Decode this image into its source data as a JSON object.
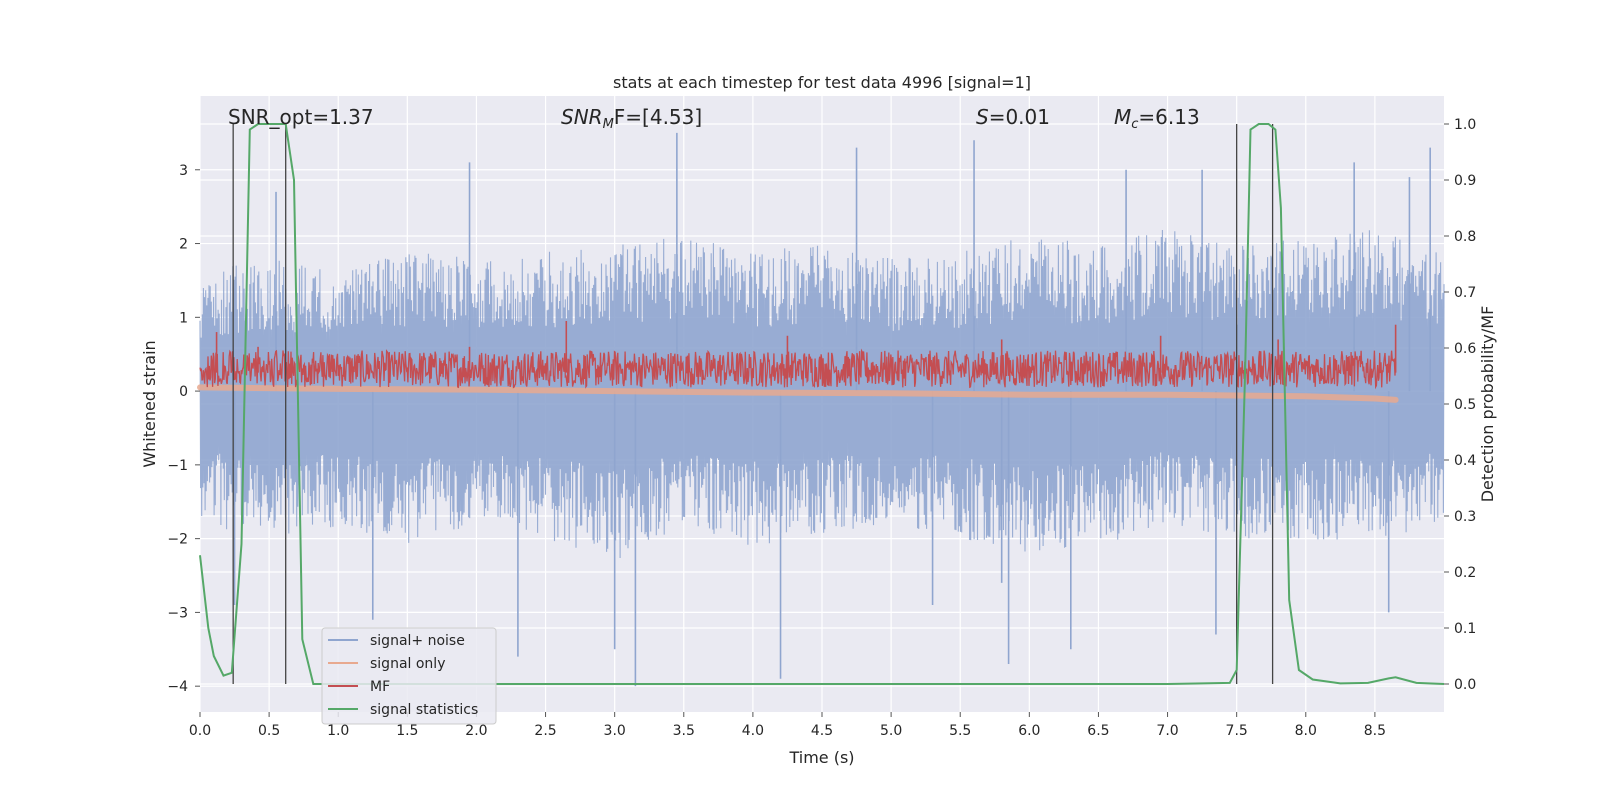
{
  "chart_data": {
    "type": "line",
    "title": "stats at each timestep for test data 4996 [signal=1]",
    "xlabel": "Time (s)",
    "ylabel": "Whitened strain",
    "ylabel_right": "Detection probability/MF",
    "xlim": [
      0.0,
      9.0
    ],
    "ylim": [
      -4.35,
      4.0
    ],
    "ylim_right": [
      -0.05,
      1.05
    ],
    "x_ticks": [
      "0.0",
      "0.5",
      "1.0",
      "1.5",
      "2.0",
      "2.5",
      "3.0",
      "3.5",
      "4.0",
      "4.5",
      "5.0",
      "5.5",
      "6.0",
      "6.5",
      "7.0",
      "7.5",
      "8.0",
      "8.5"
    ],
    "y_ticks": [
      "3",
      "2",
      "1",
      "0",
      "−1",
      "−2",
      "−3",
      "−4"
    ],
    "y_ticks_right": [
      "1.0",
      "0.9",
      "0.8",
      "0.7",
      "0.6",
      "0.5",
      "0.4",
      "0.3",
      "0.2",
      "0.1",
      "0.0"
    ],
    "grid": true,
    "legend_position": "lower-left",
    "annotations": {
      "snr_opt": "SNR_opt=1.37",
      "snr_mf_base": "SNR",
      "snr_mf_sub": "M",
      "snr_mf_rest": "F=[4.53]",
      "s_base": "S",
      "s_rest": "=0.01",
      "mc_base": "M",
      "mc_sub": "c",
      "mc_rest": "=6.13"
    },
    "series": [
      {
        "name": "signal+ noise",
        "color": "#8fa5cf",
        "axis": "left",
        "envelope_low": [
          [
            0.0,
            -1.8
          ],
          [
            0.5,
            -2.0
          ],
          [
            1.0,
            -1.9
          ],
          [
            1.5,
            -2.1
          ],
          [
            2.0,
            -1.8
          ],
          [
            2.5,
            -2.0
          ],
          [
            3.0,
            -2.3
          ],
          [
            3.5,
            -1.9
          ],
          [
            4.0,
            -2.1
          ],
          [
            4.5,
            -2.0
          ],
          [
            5.0,
            -1.8
          ],
          [
            5.5,
            -2.0
          ],
          [
            6.0,
            -2.2
          ],
          [
            6.5,
            -2.1
          ],
          [
            7.0,
            -1.8
          ],
          [
            7.5,
            -2.0
          ],
          [
            8.0,
            -2.0
          ],
          [
            8.5,
            -2.1
          ],
          [
            9.0,
            -1.8
          ]
        ],
        "envelope_high": [
          [
            0.0,
            1.6
          ],
          [
            0.5,
            1.8
          ],
          [
            1.0,
            1.7
          ],
          [
            1.5,
            1.9
          ],
          [
            2.0,
            1.8
          ],
          [
            2.5,
            1.9
          ],
          [
            3.0,
            2.0
          ],
          [
            3.5,
            2.1
          ],
          [
            4.0,
            1.9
          ],
          [
            4.5,
            2.0
          ],
          [
            5.0,
            1.8
          ],
          [
            5.5,
            1.9
          ],
          [
            6.0,
            2.1
          ],
          [
            6.5,
            2.0
          ],
          [
            7.0,
            2.2
          ],
          [
            7.5,
            2.0
          ],
          [
            8.0,
            2.1
          ],
          [
            8.5,
            2.2
          ],
          [
            9.0,
            1.9
          ]
        ],
        "spikes": [
          [
            0.25,
            -2.9
          ],
          [
            0.55,
            2.7
          ],
          [
            1.25,
            -3.1
          ],
          [
            1.95,
            3.1
          ],
          [
            2.3,
            -3.6
          ],
          [
            3.0,
            -3.5
          ],
          [
            3.15,
            -4.0
          ],
          [
            3.45,
            3.5
          ],
          [
            4.2,
            -3.9
          ],
          [
            4.75,
            3.3
          ],
          [
            5.3,
            -2.9
          ],
          [
            5.6,
            3.4
          ],
          [
            5.8,
            -2.6
          ],
          [
            5.85,
            -3.7
          ],
          [
            6.3,
            -3.5
          ],
          [
            6.7,
            3.0
          ],
          [
            7.25,
            3.0
          ],
          [
            7.35,
            -3.3
          ],
          [
            8.35,
            3.1
          ],
          [
            8.6,
            -3.0
          ],
          [
            8.75,
            2.9
          ],
          [
            8.9,
            3.3
          ]
        ]
      },
      {
        "name": "signal only",
        "color": "#e8a98f",
        "axis": "left",
        "points": [
          [
            0.0,
            0.05
          ],
          [
            1.0,
            0.03
          ],
          [
            2.0,
            0.02
          ],
          [
            3.0,
            0.0
          ],
          [
            4.0,
            -0.02
          ],
          [
            5.0,
            -0.03
          ],
          [
            6.0,
            -0.05
          ],
          [
            7.0,
            -0.05
          ],
          [
            7.5,
            -0.06
          ],
          [
            8.0,
            -0.07
          ],
          [
            8.5,
            -0.1
          ],
          [
            8.65,
            -0.12
          ]
        ]
      },
      {
        "name": "MF",
        "color": "#c44e52",
        "axis": "left",
        "band_low": 0.05,
        "band_high": 0.55,
        "spikes": [
          [
            0.12,
            0.8
          ],
          [
            0.42,
            0.6
          ],
          [
            1.95,
            0.6
          ],
          [
            2.65,
            0.95
          ],
          [
            4.25,
            0.75
          ],
          [
            5.8,
            0.7
          ],
          [
            6.95,
            0.75
          ],
          [
            7.8,
            0.7
          ],
          [
            8.65,
            0.9
          ]
        ]
      },
      {
        "name": "signal statistics",
        "color": "#55a868",
        "axis": "right",
        "points": [
          [
            0.0,
            0.23
          ],
          [
            0.06,
            0.1
          ],
          [
            0.1,
            0.05
          ],
          [
            0.17,
            0.015
          ],
          [
            0.23,
            0.02
          ],
          [
            0.3,
            0.25
          ],
          [
            0.36,
            0.99
          ],
          [
            0.42,
            1.0
          ],
          [
            0.5,
            1.0
          ],
          [
            0.62,
            1.0
          ],
          [
            0.68,
            0.9
          ],
          [
            0.74,
            0.08
          ],
          [
            0.82,
            0.0
          ],
          [
            1.0,
            0.0
          ],
          [
            2.0,
            0.0
          ],
          [
            3.0,
            0.0
          ],
          [
            4.0,
            0.0
          ],
          [
            5.0,
            0.0
          ],
          [
            6.0,
            0.0
          ],
          [
            7.0,
            0.0
          ],
          [
            7.45,
            0.002
          ],
          [
            7.5,
            0.025
          ],
          [
            7.56,
            0.55
          ],
          [
            7.6,
            0.99
          ],
          [
            7.66,
            1.0
          ],
          [
            7.73,
            1.0
          ],
          [
            7.78,
            0.99
          ],
          [
            7.82,
            0.85
          ],
          [
            7.88,
            0.15
          ],
          [
            7.95,
            0.025
          ],
          [
            8.05,
            0.008
          ],
          [
            8.25,
            0.001
          ],
          [
            8.45,
            0.002
          ],
          [
            8.6,
            0.01
          ],
          [
            8.65,
            0.012
          ],
          [
            8.8,
            0.002
          ],
          [
            9.0,
            0.0
          ]
        ]
      }
    ],
    "vertical_lines": [
      0.24,
      0.62,
      7.5,
      7.76
    ]
  }
}
